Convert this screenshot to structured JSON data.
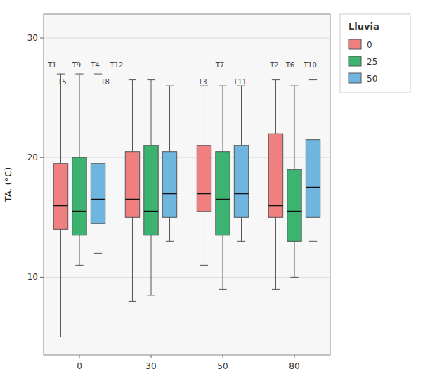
{
  "chart_data": {
    "type": "box",
    "ylabel": "TA. (°C)",
    "categories": [
      "0",
      "30",
      "50",
      "80"
    ],
    "ylim": [
      3.5,
      32
    ],
    "yticks": [
      10,
      20,
      30
    ],
    "grid": true,
    "legend": "right",
    "legend_title": "Lluvia",
    "series": [
      {
        "name": "0",
        "color": "#f08080",
        "values": [
          {
            "whislo": 5.0,
            "q1": 14.0,
            "med": 16.0,
            "q3": 19.5,
            "whishi": 27.0
          },
          {
            "whislo": 8.0,
            "q1": 15.0,
            "med": 16.5,
            "q3": 20.5,
            "whishi": 26.5
          },
          {
            "whislo": 11.0,
            "q1": 15.5,
            "med": 17.0,
            "q3": 21.0,
            "whishi": 26.0
          },
          {
            "whislo": 9.0,
            "q1": 15.0,
            "med": 16.0,
            "q3": 22.0,
            "whishi": 26.5
          }
        ]
      },
      {
        "name": "25",
        "color": "#3cb371",
        "values": [
          {
            "whislo": 11.0,
            "q1": 13.5,
            "med": 15.5,
            "q3": 20.0,
            "whishi": 27.0
          },
          {
            "whislo": 8.5,
            "q1": 13.5,
            "med": 15.5,
            "q3": 21.0,
            "whishi": 26.5
          },
          {
            "whislo": 9.0,
            "q1": 13.5,
            "med": 16.5,
            "q3": 20.5,
            "whishi": 26.0
          },
          {
            "whislo": 10.0,
            "q1": 13.0,
            "med": 15.5,
            "q3": 19.0,
            "whishi": 26.0
          }
        ]
      },
      {
        "name": "50",
        "color": "#6eb5e0",
        "values": [
          {
            "whislo": 12.0,
            "q1": 14.5,
            "med": 16.5,
            "q3": 19.5,
            "whishi": 27.0
          },
          {
            "whislo": 13.0,
            "q1": 15.0,
            "med": 17.0,
            "q3": 20.5,
            "whishi": 26.0
          },
          {
            "whislo": 13.0,
            "q1": 15.0,
            "med": 17.0,
            "q3": 21.0,
            "whishi": 26.0
          },
          {
            "whislo": 13.0,
            "q1": 15.0,
            "med": 17.5,
            "q3": 21.5,
            "whishi": 26.5
          }
        ]
      }
    ],
    "annotations": [
      {
        "text": "T1",
        "category": 0,
        "offset": -0.38,
        "y": 27.4
      },
      {
        "text": "T5",
        "category": 0,
        "offset": -0.24,
        "y": 26.0
      },
      {
        "text": "T9",
        "category": 0,
        "offset": -0.04,
        "y": 27.4
      },
      {
        "text": "T4",
        "category": 0,
        "offset": 0.22,
        "y": 27.4
      },
      {
        "text": "T8",
        "category": 0,
        "offset": 0.36,
        "y": 26.0
      },
      {
        "text": "T12",
        "category": 0,
        "offset": 0.52,
        "y": 27.4
      },
      {
        "text": "T7",
        "category": 2,
        "offset": -0.04,
        "y": 27.4
      },
      {
        "text": "T3",
        "category": 2,
        "offset": -0.28,
        "y": 26.0
      },
      {
        "text": "T11",
        "category": 2,
        "offset": 0.24,
        "y": 26.0
      },
      {
        "text": "T2",
        "category": 3,
        "offset": -0.28,
        "y": 27.4
      },
      {
        "text": "T6",
        "category": 3,
        "offset": -0.06,
        "y": 27.4
      },
      {
        "text": "T10",
        "category": 3,
        "offset": 0.22,
        "y": 27.4
      }
    ]
  }
}
